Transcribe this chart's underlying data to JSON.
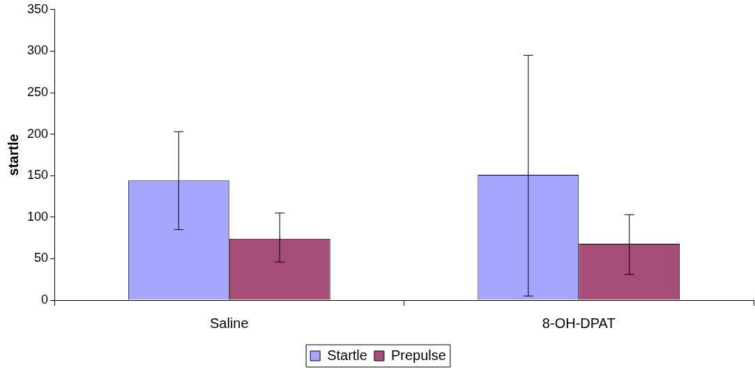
{
  "chart_data": {
    "type": "bar",
    "ylabel": "startle",
    "categories": [
      "Saline",
      "8-OH-DPAT"
    ],
    "series": [
      {
        "name": "Startle",
        "color": "#a6a6ff",
        "values": [
          144,
          151
        ],
        "errors": [
          [
            85,
            203
          ],
          [
            5,
            295
          ]
        ]
      },
      {
        "name": "Prepulse",
        "color": "#a64d79",
        "values": [
          74,
          68
        ],
        "errors": [
          [
            46,
            105
          ],
          [
            31,
            103
          ]
        ]
      }
    ],
    "ylim": [
      0,
      350
    ],
    "yticks": [
      0,
      50,
      100,
      150,
      200,
      250,
      300,
      350
    ],
    "grid": false,
    "legend": "bottom"
  }
}
